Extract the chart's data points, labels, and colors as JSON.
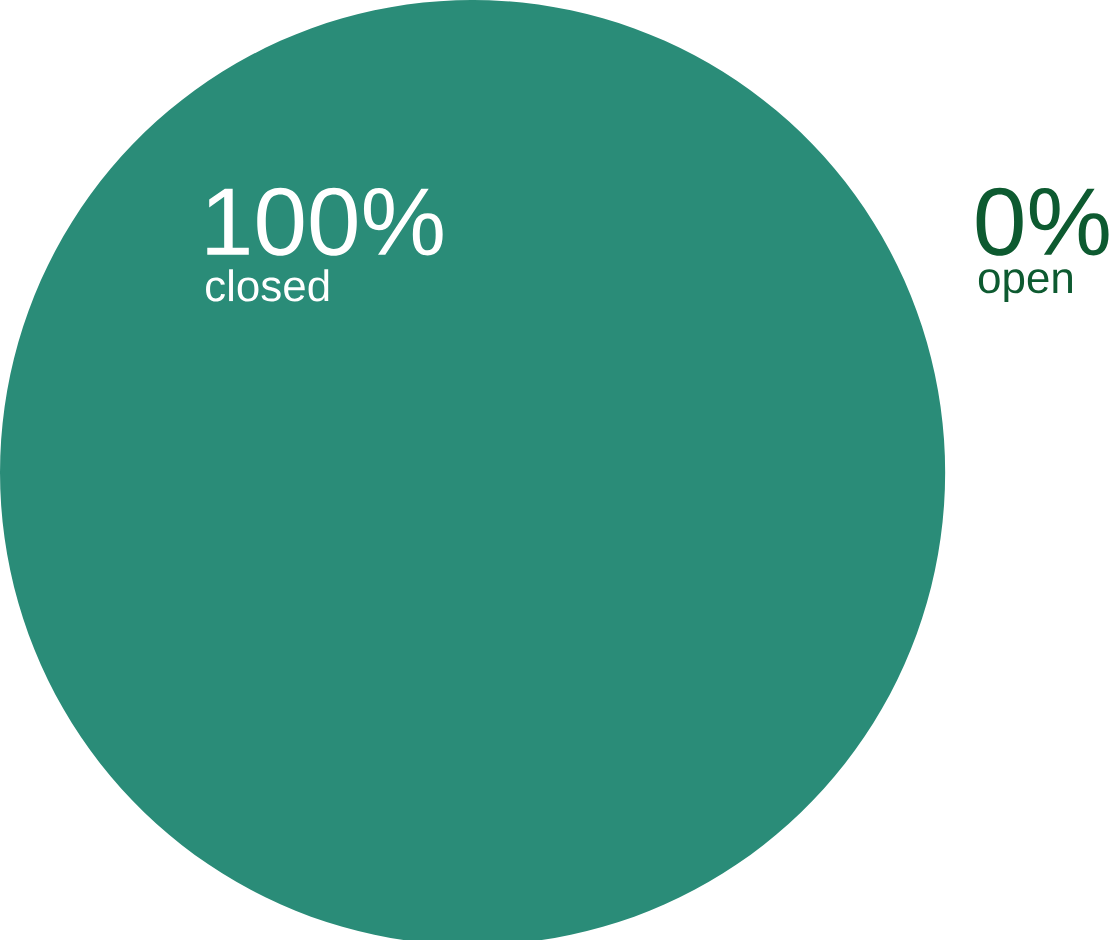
{
  "chart_data": {
    "type": "pie",
    "categories": [
      "closed",
      "open"
    ],
    "values": [
      100,
      0
    ],
    "colors": [
      "#2a8c78",
      "#0d5a30"
    ],
    "value_labels": [
      "100%",
      "0%"
    ]
  }
}
